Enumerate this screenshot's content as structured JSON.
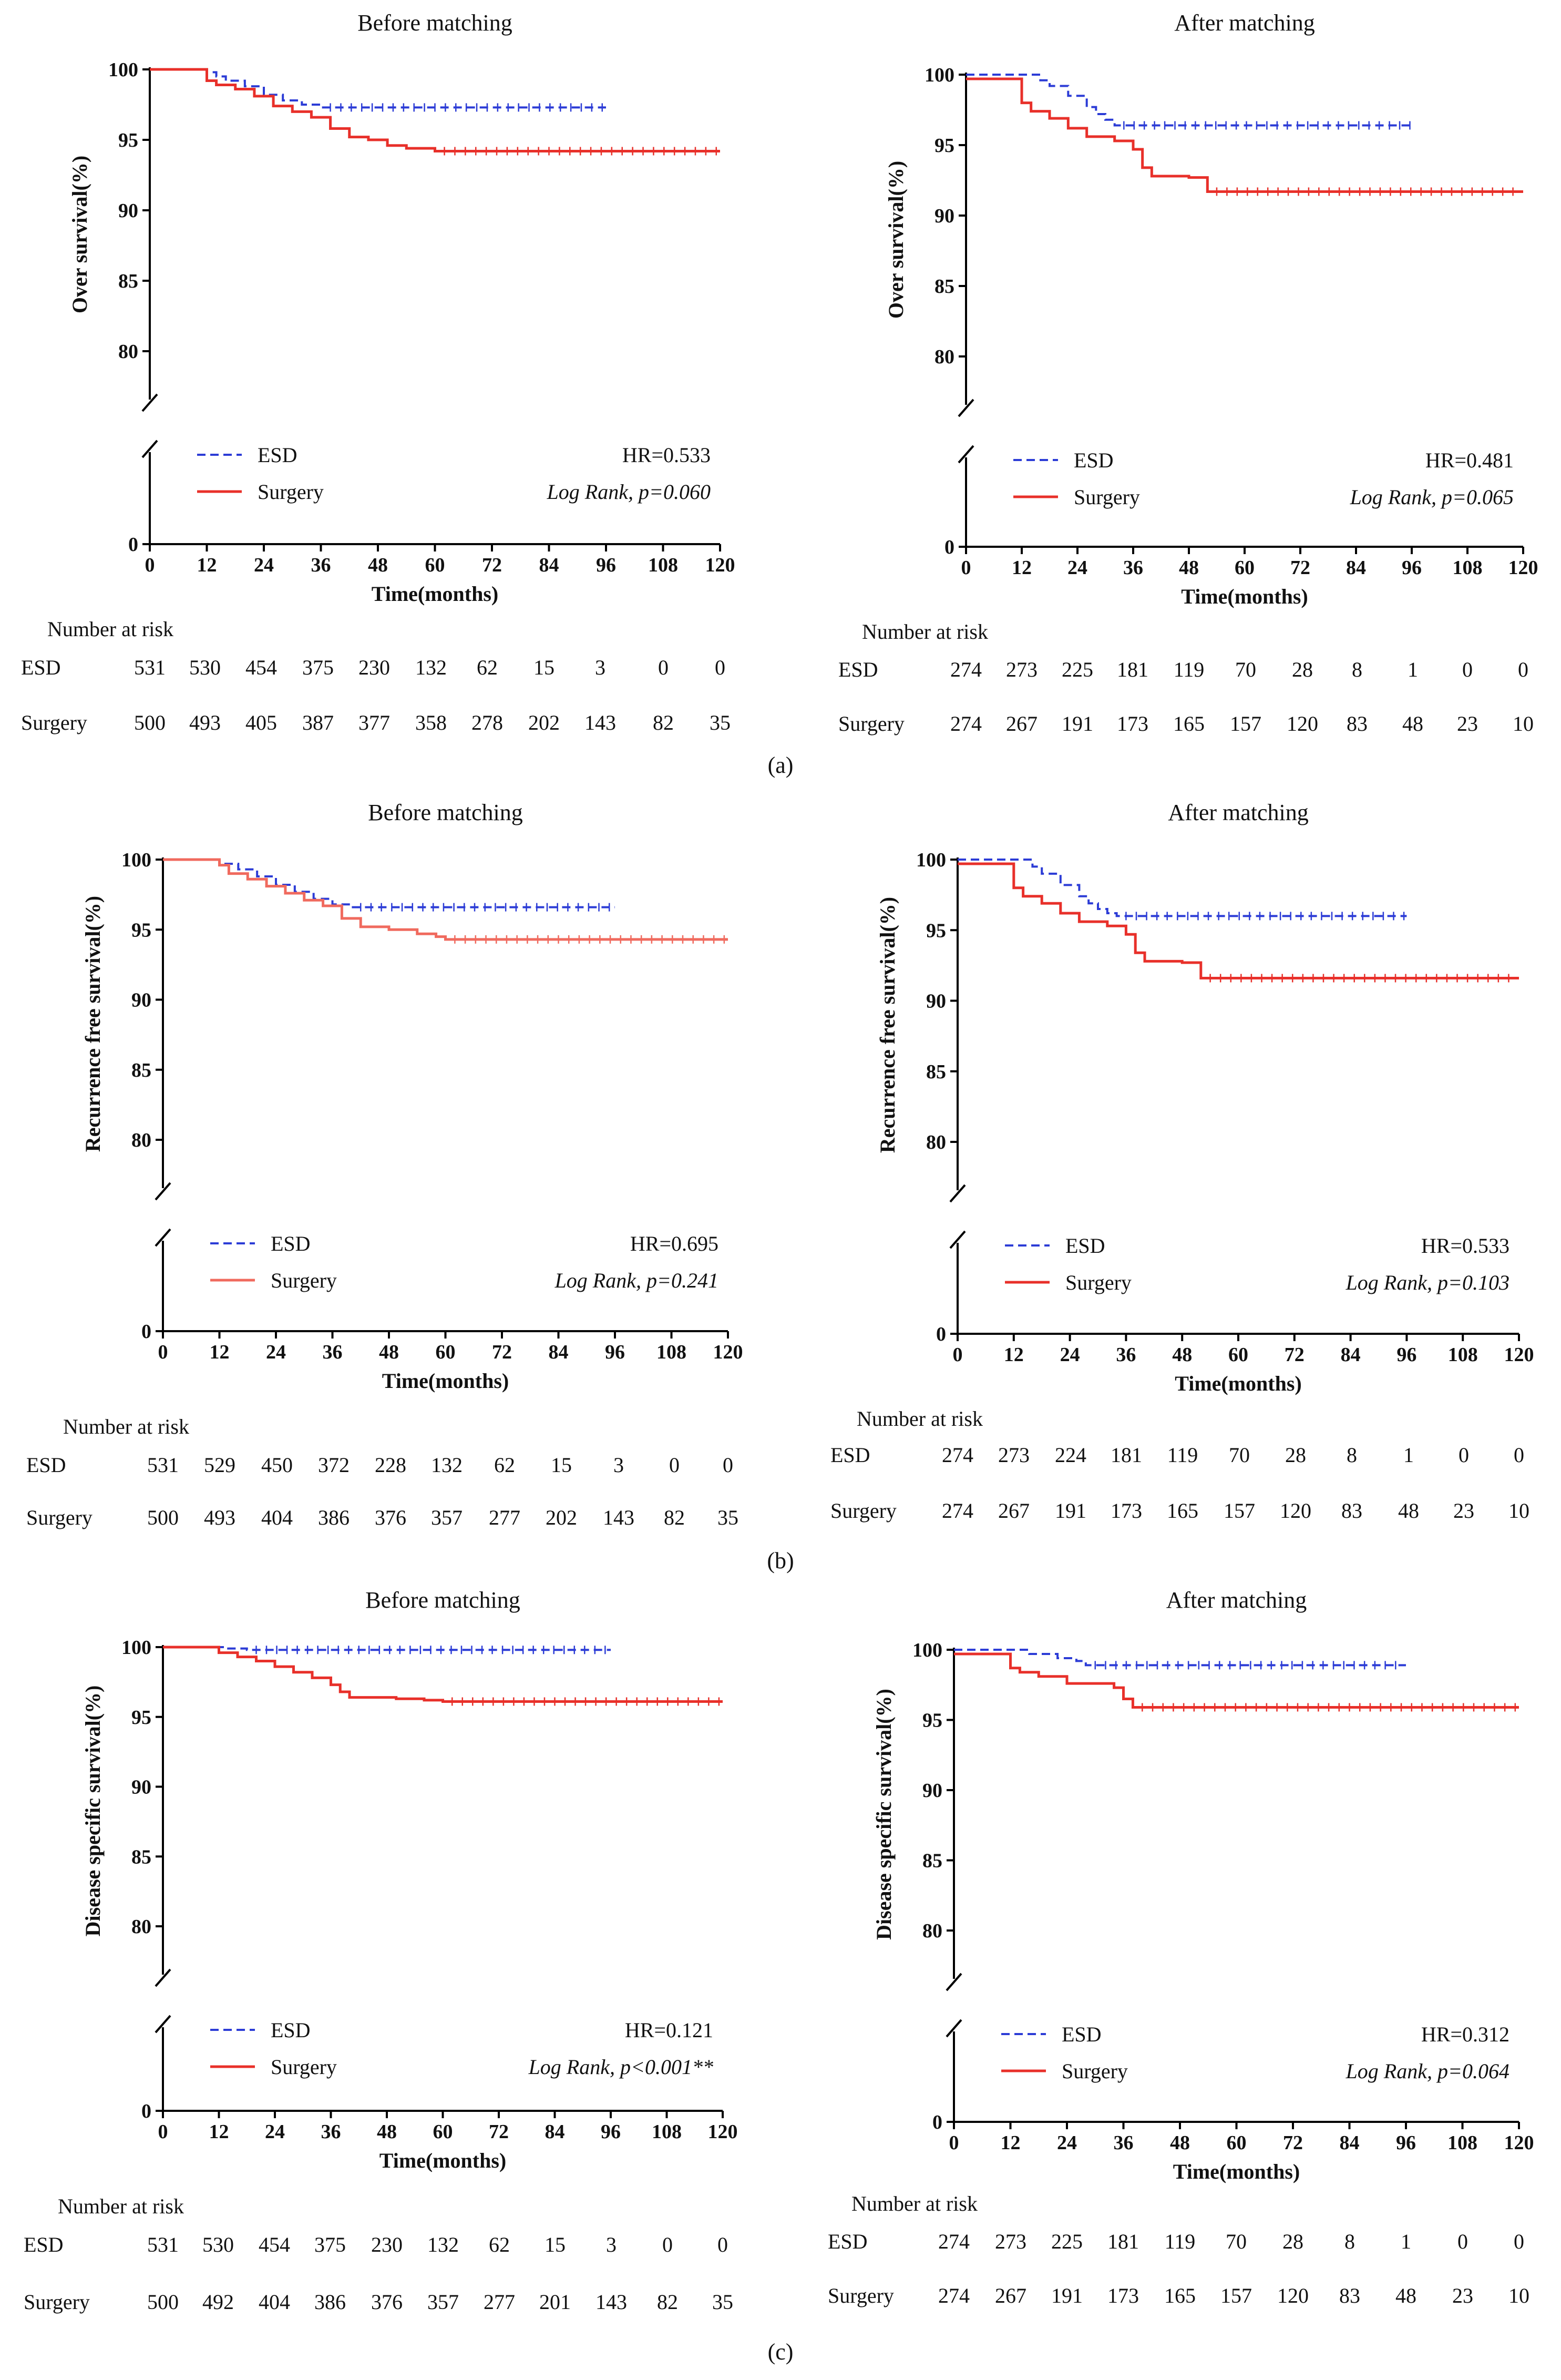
{
  "figure": {
    "panel_labels": [
      "(a)",
      "(b)",
      "(c)"
    ]
  },
  "chart_data": [
    {
      "type": "line",
      "panel": "(a)",
      "title": "Before matching",
      "xlabel": "Time(months)",
      "ylabel": "Over survival(%)",
      "xlim": [
        0,
        120
      ],
      "x_ticks": [
        "0",
        "12",
        "24",
        "36",
        "48",
        "60",
        "72",
        "84",
        "96",
        "108",
        "120"
      ],
      "y_ticks": [
        "100",
        "95",
        "90",
        "85",
        "80",
        "0"
      ],
      "legend": [
        "ESD",
        "Surgery"
      ],
      "hr": "HR=0.533",
      "logrank": "Log Rank, p=0.060",
      "risk_header": "Number at risk",
      "colors": {
        "esd": "#2c3cd6",
        "surgery": "#e8302a"
      },
      "series": [
        {
          "name": "ESD",
          "style": "dashed",
          "x": [
            0,
            10,
            12,
            14,
            16,
            20,
            24,
            28,
            32,
            36,
            96
          ],
          "values": [
            100,
            100,
            99.8,
            99.5,
            99.2,
            98.8,
            98.2,
            97.8,
            97.5,
            97.3,
            97.3
          ]
        },
        {
          "name": "Surgery",
          "style": "solid",
          "x": [
            0,
            12,
            14,
            18,
            22,
            26,
            30,
            34,
            38,
            42,
            46,
            50,
            54,
            60,
            120
          ],
          "values": [
            100,
            99.2,
            98.9,
            98.6,
            98.1,
            97.4,
            97.0,
            96.6,
            95.8,
            95.2,
            95.0,
            94.6,
            94.4,
            94.2,
            94.2
          ]
        }
      ],
      "risk_table": [
        {
          "name": "ESD",
          "values": [
            "531",
            "530",
            "454",
            "375",
            "230",
            "132",
            "62",
            "15",
            "3",
            "0",
            "0"
          ]
        },
        {
          "name": "Surgery",
          "values": [
            "500",
            "493",
            "405",
            "387",
            "377",
            "358",
            "278",
            "202",
            "143",
            "82",
            "35"
          ]
        }
      ]
    },
    {
      "type": "line",
      "panel": "(a)",
      "title": "After matching",
      "xlabel": "Time(months)",
      "ylabel": "Over survival(%)",
      "xlim": [
        0,
        120
      ],
      "x_ticks": [
        "0",
        "12",
        "24",
        "36",
        "48",
        "60",
        "72",
        "84",
        "96",
        "108",
        "120"
      ],
      "y_ticks": [
        "100",
        "95",
        "90",
        "85",
        "80",
        "0"
      ],
      "legend": [
        "ESD",
        "Surgery"
      ],
      "hr": "HR=0.481",
      "logrank": "Log Rank, p=0.065",
      "risk_header": "Number at risk",
      "colors": {
        "esd": "#2c3cd6",
        "surgery": "#e8302a"
      },
      "series": [
        {
          "name": "ESD",
          "style": "dashed",
          "x": [
            0,
            12,
            16,
            18,
            22,
            26,
            28,
            30,
            32,
            96
          ],
          "values": [
            100,
            100,
            99.6,
            99.2,
            98.5,
            97.7,
            97.2,
            96.8,
            96.4,
            96.4
          ]
        },
        {
          "name": "Surgery",
          "style": "solid",
          "x": [
            0,
            12,
            14,
            18,
            22,
            26,
            32,
            36,
            38,
            40,
            48,
            52,
            120
          ],
          "values": [
            99.7,
            98.0,
            97.4,
            96.9,
            96.2,
            95.6,
            95.3,
            94.7,
            93.4,
            92.8,
            92.7,
            91.7,
            91.7
          ]
        }
      ],
      "risk_table": [
        {
          "name": "ESD",
          "values": [
            "274",
            "273",
            "225",
            "181",
            "119",
            "70",
            "28",
            "8",
            "1",
            "0",
            "0"
          ]
        },
        {
          "name": "Surgery",
          "values": [
            "274",
            "267",
            "191",
            "173",
            "165",
            "157",
            "120",
            "83",
            "48",
            "23",
            "10"
          ]
        }
      ]
    },
    {
      "type": "line",
      "panel": "(b)",
      "title": "Before matching",
      "xlabel": "Time(months)",
      "ylabel": "Recurrence free survival(%)",
      "xlim": [
        0,
        120
      ],
      "x_ticks": [
        "0",
        "12",
        "24",
        "36",
        "48",
        "60",
        "72",
        "84",
        "96",
        "108",
        "120"
      ],
      "y_ticks": [
        "100",
        "95",
        "90",
        "85",
        "80",
        "0"
      ],
      "legend": [
        "ESD",
        "Surgery"
      ],
      "hr": "HR=0.695",
      "logrank": "Log Rank, p=0.241",
      "risk_header": "Number at risk",
      "colors": {
        "esd": "#2c3cd6",
        "surgery": "#f06a5e"
      },
      "series": [
        {
          "name": "ESD",
          "style": "dashed",
          "x": [
            0,
            10,
            12,
            16,
            20,
            24,
            28,
            32,
            36,
            40,
            96
          ],
          "values": [
            100,
            100,
            99.7,
            99.3,
            98.8,
            98.2,
            97.7,
            97.2,
            96.8,
            96.6,
            96.6
          ]
        },
        {
          "name": "Surgery",
          "style": "solid",
          "x": [
            0,
            12,
            14,
            18,
            22,
            26,
            30,
            34,
            38,
            42,
            48,
            54,
            58,
            60,
            120
          ],
          "values": [
            100,
            99.6,
            99.0,
            98.6,
            98.1,
            97.6,
            97.1,
            96.7,
            95.8,
            95.2,
            95.0,
            94.7,
            94.5,
            94.3,
            94.3
          ]
        }
      ],
      "risk_table": [
        {
          "name": "ESD",
          "values": [
            "531",
            "529",
            "450",
            "372",
            "228",
            "132",
            "62",
            "15",
            "3",
            "0",
            "0"
          ]
        },
        {
          "name": "Surgery",
          "values": [
            "500",
            "493",
            "404",
            "386",
            "376",
            "357",
            "277",
            "202",
            "143",
            "82",
            "35"
          ]
        }
      ]
    },
    {
      "type": "line",
      "panel": "(b)",
      "title": "After matching",
      "xlabel": "Time(months)",
      "ylabel": "Recurrence free survival(%)",
      "xlim": [
        0,
        120
      ],
      "x_ticks": [
        "0",
        "12",
        "24",
        "36",
        "48",
        "60",
        "72",
        "84",
        "96",
        "108",
        "120"
      ],
      "y_ticks": [
        "100",
        "95",
        "90",
        "85",
        "80",
        "0"
      ],
      "legend": [
        "ESD",
        "Surgery"
      ],
      "hr": "HR=0.533",
      "logrank": "Log Rank, p=0.103",
      "risk_header": "Number at risk",
      "colors": {
        "esd": "#2c3cd6",
        "surgery": "#e8302a"
      },
      "series": [
        {
          "name": "ESD",
          "style": "dashed",
          "x": [
            0,
            12,
            16,
            18,
            22,
            26,
            28,
            30,
            32,
            34,
            96
          ],
          "values": [
            100,
            100,
            99.5,
            99.0,
            98.2,
            97.4,
            96.9,
            96.5,
            96.2,
            96.0,
            96.0
          ]
        },
        {
          "name": "Surgery",
          "style": "solid",
          "x": [
            0,
            12,
            14,
            18,
            22,
            26,
            32,
            36,
            38,
            40,
            48,
            52,
            120
          ],
          "values": [
            99.7,
            98.0,
            97.4,
            96.9,
            96.2,
            95.6,
            95.3,
            94.7,
            93.4,
            92.8,
            92.7,
            91.6,
            91.6
          ]
        }
      ],
      "risk_table": [
        {
          "name": "ESD",
          "values": [
            "274",
            "273",
            "224",
            "181",
            "119",
            "70",
            "28",
            "8",
            "1",
            "0",
            "0"
          ]
        },
        {
          "name": "Surgery",
          "values": [
            "274",
            "267",
            "191",
            "173",
            "165",
            "157",
            "120",
            "83",
            "48",
            "23",
            "10"
          ]
        }
      ]
    },
    {
      "type": "line",
      "panel": "(c)",
      "title": "Before matching",
      "xlabel": "Time(months)",
      "ylabel": "Disease specific survival(%)",
      "xlim": [
        0,
        120
      ],
      "x_ticks": [
        "0",
        "12",
        "24",
        "36",
        "48",
        "60",
        "72",
        "84",
        "96",
        "108",
        "120"
      ],
      "y_ticks": [
        "100",
        "95",
        "90",
        "85",
        "80",
        "0"
      ],
      "legend": [
        "ESD",
        "Surgery"
      ],
      "hr": "HR=0.121",
      "logrank": "Log Rank, p<0.001**",
      "risk_header": "Number at risk",
      "colors": {
        "esd": "#2c3cd6",
        "surgery": "#e8302a"
      },
      "series": [
        {
          "name": "ESD",
          "style": "dashed",
          "x": [
            0,
            12,
            14,
            18,
            96
          ],
          "values": [
            100,
            100,
            99.9,
            99.8,
            99.8
          ]
        },
        {
          "name": "Surgery",
          "style": "solid",
          "x": [
            0,
            12,
            16,
            20,
            24,
            28,
            32,
            36,
            38,
            40,
            50,
            56,
            60,
            120
          ],
          "values": [
            100,
            99.6,
            99.3,
            99.0,
            98.6,
            98.2,
            97.8,
            97.3,
            96.8,
            96.4,
            96.3,
            96.2,
            96.1,
            96.1
          ]
        }
      ],
      "risk_table": [
        {
          "name": "ESD",
          "values": [
            "531",
            "530",
            "454",
            "375",
            "230",
            "132",
            "62",
            "15",
            "3",
            "0",
            "0"
          ]
        },
        {
          "name": "Surgery",
          "values": [
            "500",
            "492",
            "404",
            "386",
            "376",
            "357",
            "277",
            "201",
            "143",
            "82",
            "35"
          ]
        }
      ]
    },
    {
      "type": "line",
      "panel": "(c)",
      "title": "After matching",
      "xlabel": "Time(months)",
      "ylabel": "Disease specific survival(%)",
      "xlim": [
        0,
        120
      ],
      "x_ticks": [
        "0",
        "12",
        "24",
        "36",
        "48",
        "60",
        "72",
        "84",
        "96",
        "108",
        "120"
      ],
      "y_ticks": [
        "100",
        "95",
        "90",
        "85",
        "80",
        "0"
      ],
      "legend": [
        "ESD",
        "Surgery"
      ],
      "hr": "HR=0.312",
      "logrank": "Log Rank, p=0.064",
      "risk_header": "Number at risk",
      "colors": {
        "esd": "#2c3cd6",
        "surgery": "#e8302a"
      },
      "series": [
        {
          "name": "ESD",
          "style": "dashed",
          "x": [
            0,
            12,
            16,
            22,
            26,
            28,
            96
          ],
          "values": [
            100,
            100,
            99.7,
            99.4,
            99.2,
            98.9,
            98.9
          ]
        },
        {
          "name": "Surgery",
          "style": "solid",
          "x": [
            0,
            12,
            14,
            18,
            24,
            34,
            36,
            38,
            120
          ],
          "values": [
            99.7,
            98.7,
            98.4,
            98.1,
            97.6,
            97.3,
            96.5,
            95.9,
            95.9
          ]
        }
      ],
      "risk_table": [
        {
          "name": "ESD",
          "values": [
            "274",
            "273",
            "225",
            "181",
            "119",
            "70",
            "28",
            "8",
            "1",
            "0",
            "0"
          ]
        },
        {
          "name": "Surgery",
          "values": [
            "274",
            "267",
            "191",
            "173",
            "165",
            "157",
            "120",
            "83",
            "48",
            "23",
            "10"
          ]
        }
      ]
    }
  ]
}
